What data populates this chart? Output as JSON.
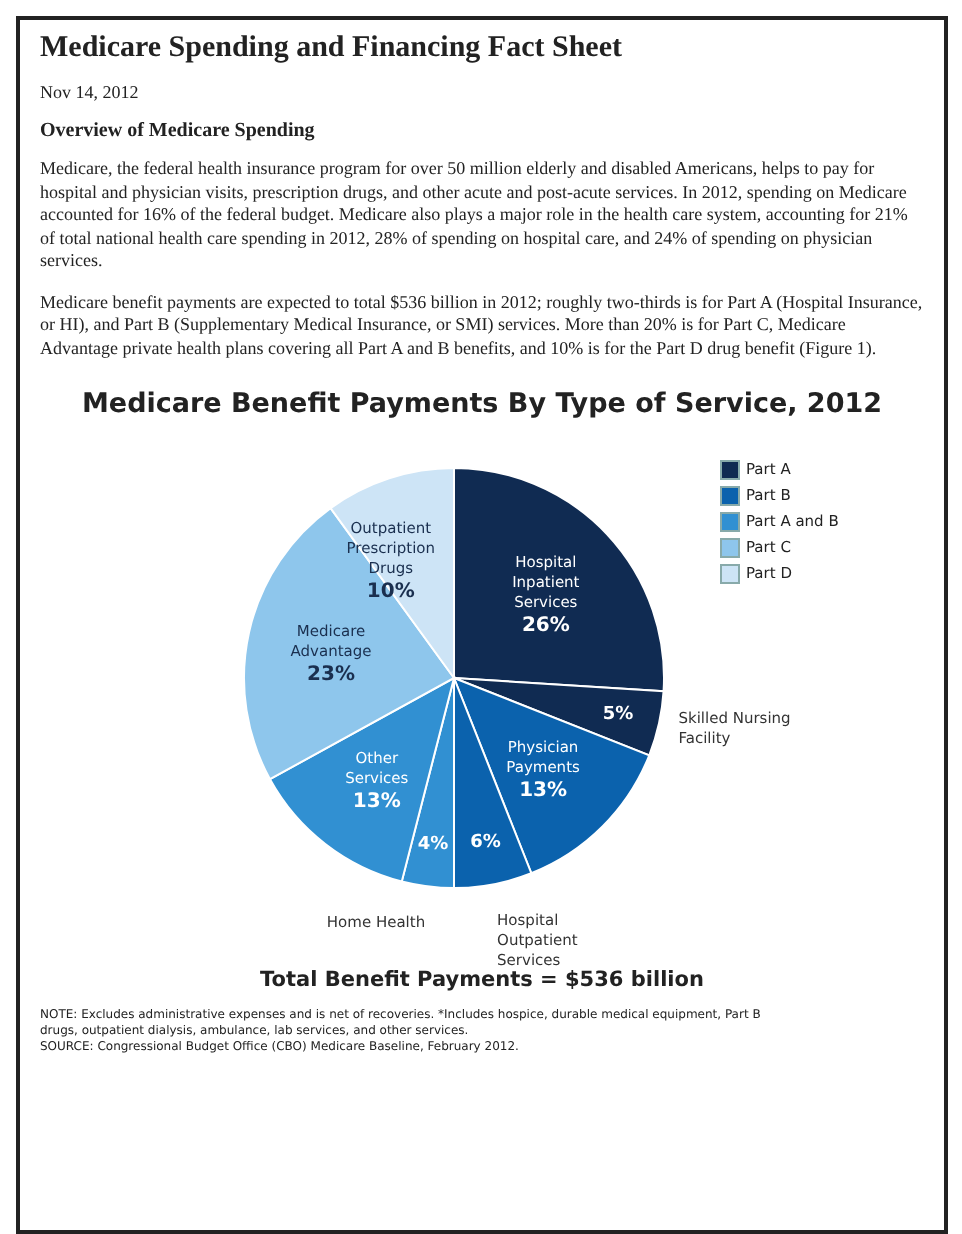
{
  "chart_data": {
    "type": "pie",
    "title": "Medicare Benefit Payments By Type of Service, 2012",
    "categories": [
      "Hospital Inpatient Services",
      "Skilled Nursing Facility",
      "Physician Payments",
      "Hospital Outpatient Services",
      "Home Health",
      "Other Services",
      "Medicare Advantage",
      "Outpatient Prescription Drugs"
    ],
    "values": [
      26,
      5,
      13,
      6,
      4,
      13,
      23,
      10
    ],
    "colors": [
      "#102b52",
      "#102b52",
      "#0b62ad",
      "#0b62ad",
      "#3190d2",
      "#3190d2",
      "#8ec6ec",
      "#cde4f6"
    ],
    "value_labels": [
      "26%",
      "5%",
      "13%",
      "6%",
      "4%",
      "13%",
      "23%",
      "10%"
    ],
    "annotations": [
      "Medicare Spending and Financing Fact Sheet",
      "Nov 14, 2012",
      "Overview of Medicare Spending",
      "Medicare, the federal health insurance program for over 50 million elderly and disabled Americans, helps to pay for hospital and physician visits, prescription drugs, and other acute and post-acute services.  In 2012, spending on Medicare accounted for 16% of the federal budget.  Medicare also plays a major role in the health care system, accounting for 21% of total national health care spending in 2012, 28% of spending on hospital care, and 24% of spending on physician services.",
      "Medicare benefit payments are expected to total $536 billion in 2012; roughly two-thirds is for Part A (Hospital Insurance, or HI), and Part B (Supplementary Medical Insurance, or SMI) services.  More than 20% is for Part C, Medicare Advantage private health plans covering all Part A and B benefits, and 10% is for the Part D drug benefit (Figure 1).",
      "Part A",
      "Part B",
      "Part A and B",
      "Part C",
      "Part D",
      "Total Benefit Payments = $536 billion",
      "NOTE: Excludes administrative expenses and is net of recoveries. *Includes hospice, durable medical equipment, Part B drugs, outpatient dialysis, ambulance, lab services, and other services.",
      "SOURCE: Congressional Budget Office (CBO) Medicare Baseline, February 2012."
    ]
  }
}
